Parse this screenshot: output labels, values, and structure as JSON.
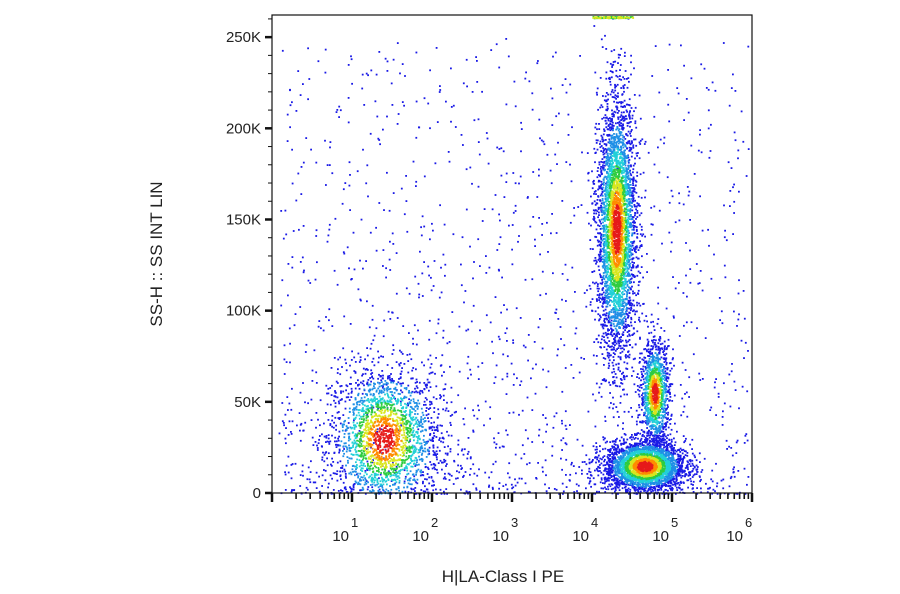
{
  "chart_data": {
    "type": "scatter",
    "title": "",
    "xlabel": "H|LA-Class I PE",
    "ylabel": "SS-H :: SS INT LIN",
    "x_scale": "log",
    "x_range": [
      1,
      1000000
    ],
    "y_range": [
      0,
      262144
    ],
    "x_ticks": [
      {
        "base": "10",
        "exp": "1",
        "value": 10
      },
      {
        "base": "10",
        "exp": "2",
        "value": 100
      },
      {
        "base": "10",
        "exp": "3",
        "value": 1000
      },
      {
        "base": "10",
        "exp": "4",
        "value": 10000
      },
      {
        "base": "10",
        "exp": "5",
        "value": 100000
      },
      {
        "base": "10",
        "exp": "6",
        "value": 1000000
      }
    ],
    "y_ticks": [
      {
        "label": "0",
        "value": 0
      },
      {
        "label": "50K",
        "value": 50000
      },
      {
        "label": "100K",
        "value": 100000
      },
      {
        "label": "150K",
        "value": 150000
      },
      {
        "label": "200K",
        "value": 200000
      },
      {
        "label": "250K",
        "value": 250000
      }
    ],
    "density_colors": [
      "#1a1ae6",
      "#1f8fe6",
      "#22d0d8",
      "#2ecc40",
      "#d8e61f",
      "#ff8c00",
      "#e61a1a"
    ],
    "populations": [
      {
        "x_center": 25,
        "y_center": 30000,
        "x_spread_decades": 0.35,
        "y_spread": 20000,
        "count": 2200
      },
      {
        "x_center": 20000,
        "y_center": 145000,
        "x_spread_decades": 0.12,
        "y_spread": 35000,
        "count": 3600
      },
      {
        "x_center": 45000,
        "y_center": 15000,
        "x_spread_decades": 0.25,
        "y_spread": 7000,
        "count": 3000
      },
      {
        "x_center": 60000,
        "y_center": 55000,
        "x_spread_decades": 0.09,
        "y_spread": 14000,
        "count": 1200
      }
    ],
    "grid": false,
    "legend": "none"
  }
}
